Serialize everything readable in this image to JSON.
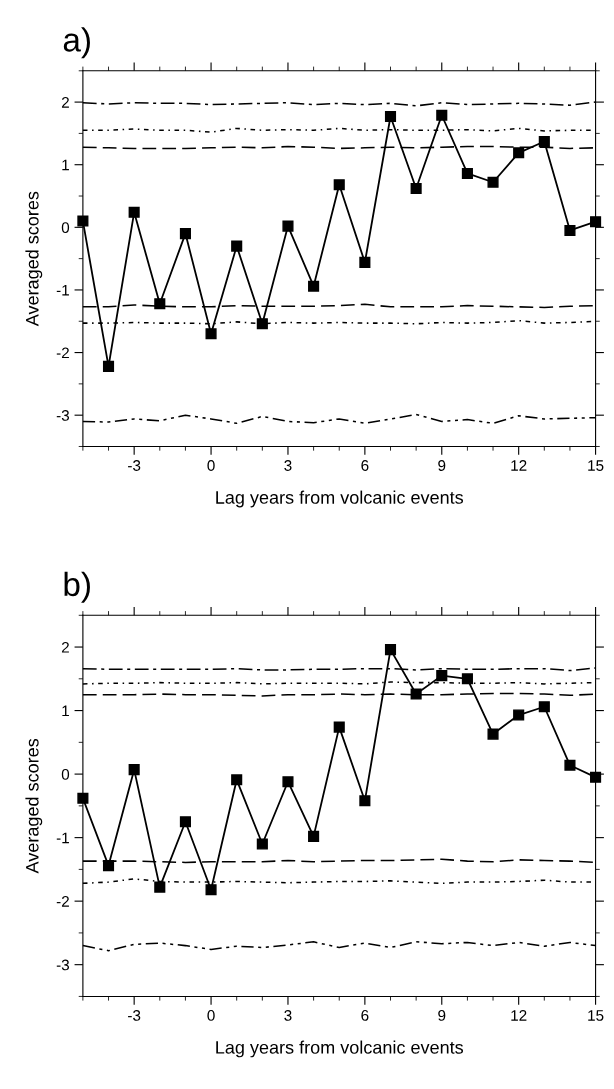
{
  "chart_data": [
    {
      "type": "line",
      "title": "a)",
      "xlabel": "Lag years from volcanic events",
      "ylabel": "Averaged scores",
      "x": [
        -5,
        -4,
        -3,
        -2,
        -1,
        0,
        1,
        2,
        3,
        4,
        5,
        6,
        7,
        8,
        9,
        10,
        11,
        12,
        13,
        14,
        15
      ],
      "xlim": [
        -5,
        15
      ],
      "xticks": [
        -3,
        0,
        3,
        6,
        9,
        12,
        15
      ],
      "ylim": [
        -3.5,
        2.5
      ],
      "yticks": [
        -3,
        -2,
        -1,
        0,
        1,
        2
      ],
      "grid": false,
      "legend": false,
      "series": [
        {
          "color": "#000000",
          "line_style": "solid",
          "marker": "square",
          "values": [
            0.1,
            -2.22,
            0.24,
            -1.22,
            -0.1,
            -1.7,
            -0.3,
            -1.54,
            0.02,
            -0.94,
            0.68,
            -0.56,
            1.77,
            0.62,
            1.79,
            0.86,
            0.72,
            1.19,
            1.37,
            -0.05,
            0.09
          ]
        },
        {
          "color": "#000000",
          "line_style": "dashdot",
          "marker": "none",
          "values": [
            1.99,
            1.97,
            1.99,
            1.98,
            1.98,
            1.96,
            1.97,
            1.98,
            1.99,
            1.96,
            1.98,
            1.96,
            1.98,
            1.94,
            1.99,
            1.96,
            1.97,
            1.98,
            1.97,
            1.95,
            2.0
          ]
        },
        {
          "color": "#000000",
          "line_style": "dotted",
          "marker": "none",
          "values": [
            1.55,
            1.55,
            1.57,
            1.55,
            1.55,
            1.52,
            1.58,
            1.55,
            1.56,
            1.55,
            1.58,
            1.55,
            1.56,
            1.55,
            1.55,
            1.56,
            1.54,
            1.58,
            1.54,
            1.55,
            1.55
          ]
        },
        {
          "color": "#000000",
          "line_style": "dashed",
          "marker": "none",
          "values": [
            1.28,
            1.27,
            1.26,
            1.26,
            1.26,
            1.27,
            1.28,
            1.27,
            1.29,
            1.28,
            1.26,
            1.27,
            1.28,
            1.27,
            1.28,
            1.29,
            1.29,
            1.28,
            1.28,
            1.26,
            1.27
          ]
        },
        {
          "color": "#000000",
          "line_style": "dashed",
          "marker": "none",
          "values": [
            -1.27,
            -1.27,
            -1.24,
            -1.26,
            -1.27,
            -1.27,
            -1.25,
            -1.26,
            -1.26,
            -1.26,
            -1.25,
            -1.23,
            -1.27,
            -1.27,
            -1.27,
            -1.25,
            -1.26,
            -1.27,
            -1.28,
            -1.26,
            -1.25
          ]
        },
        {
          "color": "#000000",
          "line_style": "dotted",
          "marker": "none",
          "values": [
            -1.53,
            -1.53,
            -1.52,
            -1.53,
            -1.53,
            -1.54,
            -1.51,
            -1.54,
            -1.52,
            -1.53,
            -1.52,
            -1.53,
            -1.53,
            -1.54,
            -1.52,
            -1.53,
            -1.52,
            -1.49,
            -1.53,
            -1.52,
            -1.5
          ]
        },
        {
          "color": "#000000",
          "line_style": "dashdotdot",
          "marker": "none",
          "values": [
            -3.1,
            -3.11,
            -3.06,
            -3.09,
            -3.0,
            -3.06,
            -3.13,
            -3.02,
            -3.1,
            -3.12,
            -3.06,
            -3.13,
            -3.06,
            -2.99,
            -3.1,
            -3.07,
            -3.13,
            -3.01,
            -3.06,
            -3.05,
            -3.04
          ]
        }
      ]
    },
    {
      "type": "line",
      "title": "b)",
      "xlabel": "Lag years from volcanic events",
      "ylabel": "Averaged scores",
      "x": [
        -5,
        -4,
        -3,
        -2,
        -1,
        0,
        1,
        2,
        3,
        4,
        5,
        6,
        7,
        8,
        9,
        10,
        11,
        12,
        13,
        14,
        15
      ],
      "xlim": [
        -5,
        15
      ],
      "xticks": [
        -3,
        0,
        3,
        6,
        9,
        12,
        15
      ],
      "ylim": [
        -3.5,
        2.5
      ],
      "yticks": [
        -3,
        -2,
        -1,
        0,
        1,
        2
      ],
      "grid": false,
      "legend": false,
      "series": [
        {
          "color": "#000000",
          "line_style": "solid",
          "marker": "square",
          "values": [
            -0.38,
            -1.44,
            0.07,
            -1.78,
            -0.75,
            -1.82,
            -0.09,
            -1.1,
            -0.12,
            -0.98,
            0.74,
            -0.42,
            1.96,
            1.26,
            1.55,
            1.5,
            0.63,
            0.93,
            1.06,
            0.14,
            -0.05
          ]
        },
        {
          "color": "#000000",
          "line_style": "dashdot",
          "marker": "none",
          "values": [
            1.66,
            1.65,
            1.65,
            1.65,
            1.65,
            1.65,
            1.66,
            1.64,
            1.64,
            1.65,
            1.65,
            1.66,
            1.66,
            1.64,
            1.66,
            1.65,
            1.65,
            1.66,
            1.66,
            1.63,
            1.67
          ]
        },
        {
          "color": "#000000",
          "line_style": "dotted",
          "marker": "none",
          "values": [
            1.42,
            1.43,
            1.43,
            1.44,
            1.43,
            1.43,
            1.44,
            1.42,
            1.43,
            1.43,
            1.43,
            1.42,
            1.45,
            1.44,
            1.44,
            1.43,
            1.43,
            1.44,
            1.42,
            1.43,
            1.44
          ]
        },
        {
          "color": "#000000",
          "line_style": "dashed",
          "marker": "none",
          "values": [
            1.25,
            1.25,
            1.25,
            1.26,
            1.25,
            1.25,
            1.24,
            1.23,
            1.25,
            1.25,
            1.26,
            1.25,
            1.26,
            1.25,
            1.25,
            1.26,
            1.27,
            1.27,
            1.26,
            1.24,
            1.26
          ]
        },
        {
          "color": "#000000",
          "line_style": "dashed",
          "marker": "none",
          "values": [
            -1.37,
            -1.37,
            -1.37,
            -1.38,
            -1.39,
            -1.38,
            -1.38,
            -1.38,
            -1.36,
            -1.38,
            -1.37,
            -1.36,
            -1.36,
            -1.35,
            -1.34,
            -1.37,
            -1.38,
            -1.35,
            -1.36,
            -1.37,
            -1.39
          ]
        },
        {
          "color": "#000000",
          "line_style": "dotted",
          "marker": "none",
          "values": [
            -1.72,
            -1.7,
            -1.65,
            -1.69,
            -1.7,
            -1.7,
            -1.69,
            -1.7,
            -1.71,
            -1.7,
            -1.69,
            -1.69,
            -1.68,
            -1.7,
            -1.72,
            -1.7,
            -1.7,
            -1.69,
            -1.67,
            -1.7,
            -1.7
          ]
        },
        {
          "color": "#000000",
          "line_style": "dashdotdot",
          "marker": "none",
          "values": [
            -2.7,
            -2.78,
            -2.68,
            -2.66,
            -2.7,
            -2.76,
            -2.71,
            -2.73,
            -2.69,
            -2.64,
            -2.73,
            -2.66,
            -2.73,
            -2.64,
            -2.67,
            -2.65,
            -2.7,
            -2.65,
            -2.71,
            -2.65,
            -2.7
          ]
        }
      ]
    }
  ]
}
